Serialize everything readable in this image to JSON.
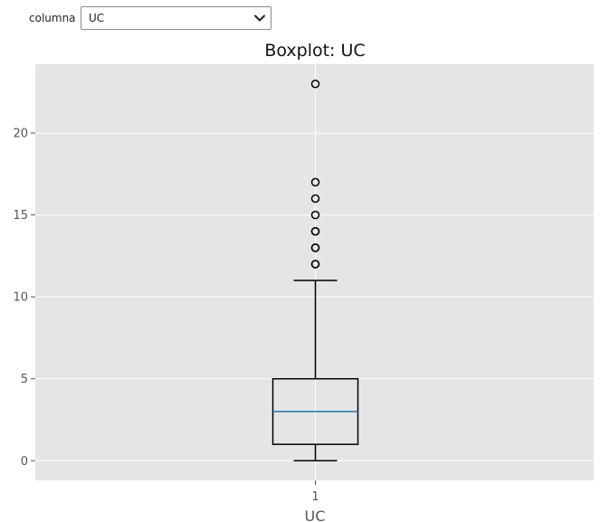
{
  "controls": {
    "column_label": "columna",
    "column_selected": "UC"
  },
  "icons": {
    "dropdown": "chevron-down-icon"
  },
  "chart_data": {
    "type": "boxplot",
    "title": "Boxplot: UC",
    "xlabel": "UC",
    "ylabel": "",
    "categories": [
      "1"
    ],
    "ylim": [
      -1.2,
      24.2
    ],
    "yticks": [
      0,
      5,
      10,
      15,
      20
    ],
    "boxes": [
      {
        "label": "1",
        "whisker_low": 0,
        "q1": 1,
        "median": 3,
        "q3": 5,
        "whisker_high": 11,
        "outliers": [
          12,
          12,
          13,
          13,
          14,
          14,
          15,
          16,
          17,
          23
        ]
      }
    ],
    "grid": true,
    "colors": {
      "plot_background": "#e5e5e5",
      "grid": "#ffffff",
      "box": "#000000",
      "median": "#1f77b4"
    }
  }
}
